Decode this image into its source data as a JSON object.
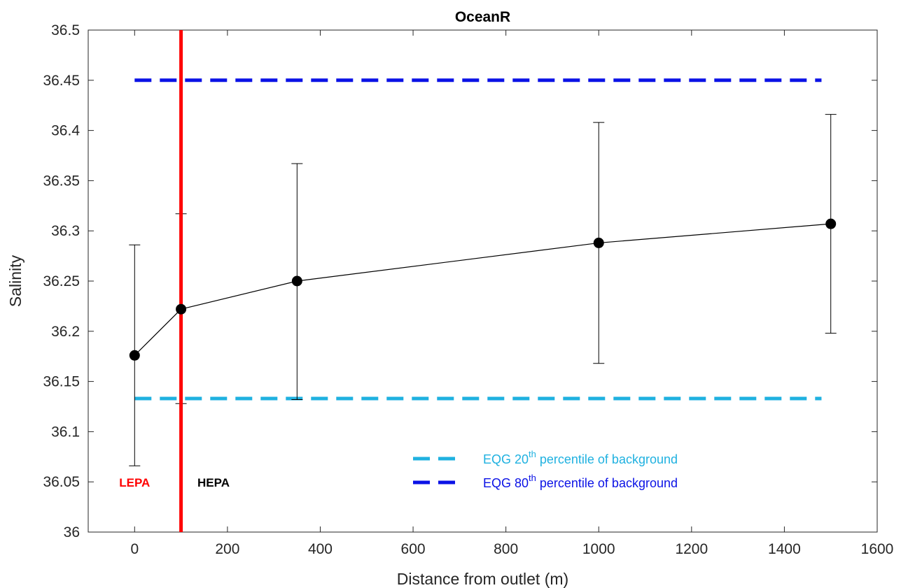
{
  "chart_data": {
    "type": "line",
    "title": "OceanR",
    "xlabel": "Distance from outlet (m)",
    "ylabel": "Salinity",
    "xlim": [
      -100,
      1600
    ],
    "ylim": [
      36,
      36.5
    ],
    "x_ticks": [
      0,
      200,
      400,
      600,
      800,
      1000,
      1200,
      1400,
      1600
    ],
    "x_tick_labels": [
      "0",
      "200",
      "400",
      "600",
      "800",
      "1000",
      "1200",
      "1400",
      "1600"
    ],
    "y_ticks": [
      36,
      36.05,
      36.1,
      36.15,
      36.2,
      36.25,
      36.3,
      36.35,
      36.4,
      36.45,
      36.5
    ],
    "y_tick_labels": [
      "36",
      "36.05",
      "36.1",
      "36.15",
      "36.2",
      "36.25",
      "36.3",
      "36.35",
      "36.4",
      "36.45",
      "36.5"
    ],
    "grid": false,
    "legend_position": "bottom-right",
    "series": [
      {
        "x": [
          0,
          100,
          350,
          1000,
          1500
        ],
        "y": [
          36.176,
          36.222,
          36.25,
          36.288,
          36.307
        ],
        "err_low": [
          36.066,
          36.128,
          36.132,
          36.168,
          36.198
        ],
        "err_high": [
          36.286,
          36.317,
          36.367,
          36.408,
          36.416
        ],
        "color": "#000000"
      }
    ],
    "reference_lines": [
      {
        "legend_prefix": "EQG 20",
        "legend_sup": "th",
        "legend_suffix": " percentile of background",
        "y": 36.133,
        "x_range": [
          0,
          1480
        ],
        "color": "#1fb1e0",
        "style": "dashed"
      },
      {
        "legend_prefix": "EQG 80",
        "legend_sup": "th",
        "legend_suffix": " percentile of background",
        "y": 36.45,
        "x_range": [
          0,
          1480
        ],
        "color": "#0b12e6",
        "style": "dashed"
      }
    ],
    "vertical_line": {
      "x": 100,
      "color": "#ff0000"
    },
    "annotations": [
      {
        "text": "LEPA",
        "x": 0,
        "y": 36.05,
        "color": "#ff0000"
      },
      {
        "text": "HEPA",
        "x": 170,
        "y": 36.05,
        "color": "#000000"
      }
    ]
  }
}
